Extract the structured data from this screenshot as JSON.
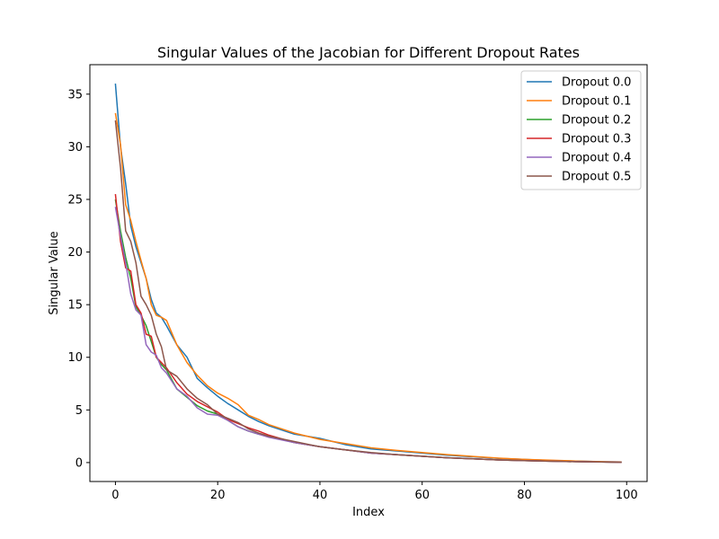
{
  "chart_data": {
    "type": "line",
    "title": "Singular Values of the Jacobian for Different Dropout Rates",
    "xlabel": "Index",
    "ylabel": "Singular Value",
    "xlim": [
      -5,
      104
    ],
    "ylim": [
      -1.8,
      37.8
    ],
    "xticks": [
      0,
      20,
      40,
      60,
      80,
      100
    ],
    "yticks": [
      0,
      5,
      10,
      15,
      20,
      25,
      30,
      35
    ],
    "grid": false,
    "legend_position": "top-right",
    "x": [
      0,
      1,
      2,
      3,
      4,
      5,
      6,
      7,
      8,
      9,
      10,
      12,
      14,
      16,
      18,
      20,
      22,
      24,
      26,
      28,
      30,
      35,
      40,
      45,
      50,
      55,
      60,
      65,
      70,
      75,
      80,
      85,
      90,
      95,
      99
    ],
    "series": [
      {
        "name": "Dropout 0.0",
        "color": "#1f77b4",
        "values": [
          36.0,
          30.0,
          26.5,
          22.5,
          20.5,
          19.0,
          17.5,
          15.5,
          14.2,
          13.8,
          13.0,
          11.2,
          10.0,
          8.0,
          7.1,
          6.3,
          5.6,
          5.0,
          4.4,
          3.9,
          3.5,
          2.7,
          2.3,
          1.7,
          1.3,
          1.1,
          0.9,
          0.7,
          0.55,
          0.4,
          0.3,
          0.2,
          0.15,
          0.08,
          0.05
        ]
      },
      {
        "name": "Dropout 0.1",
        "color": "#ff7f0e",
        "values": [
          33.2,
          30.2,
          24.5,
          23.0,
          21.0,
          19.2,
          17.5,
          15.0,
          14.0,
          13.8,
          13.5,
          11.2,
          9.5,
          8.3,
          7.3,
          6.6,
          6.1,
          5.5,
          4.5,
          4.1,
          3.6,
          2.8,
          2.2,
          1.8,
          1.4,
          1.15,
          0.95,
          0.75,
          0.58,
          0.42,
          0.3,
          0.22,
          0.15,
          0.09,
          0.05
        ]
      },
      {
        "name": "Dropout 0.2",
        "color": "#2ca02c",
        "values": [
          25.0,
          22.0,
          19.5,
          17.5,
          14.8,
          14.0,
          13.0,
          11.5,
          10.0,
          9.3,
          8.8,
          7.0,
          6.2,
          5.4,
          4.9,
          4.6,
          4.0,
          3.4,
          3.0,
          2.7,
          2.5,
          1.9,
          1.5,
          1.2,
          0.9,
          0.75,
          0.6,
          0.45,
          0.35,
          0.25,
          0.18,
          0.13,
          0.09,
          0.05,
          0.03
        ]
      },
      {
        "name": "Dropout 0.3",
        "color": "#d62728",
        "values": [
          25.5,
          21.0,
          18.5,
          18.2,
          15.0,
          14.2,
          12.2,
          12.0,
          10.0,
          9.5,
          9.0,
          7.6,
          6.5,
          5.8,
          5.3,
          4.8,
          4.1,
          3.7,
          3.3,
          3.0,
          2.6,
          1.9,
          1.5,
          1.2,
          0.9,
          0.75,
          0.6,
          0.45,
          0.35,
          0.25,
          0.18,
          0.13,
          0.09,
          0.05,
          0.03
        ]
      },
      {
        "name": "Dropout 0.4",
        "color": "#9467bd",
        "values": [
          24.3,
          21.5,
          19.0,
          16.0,
          14.5,
          14.0,
          11.2,
          10.5,
          10.2,
          9.0,
          8.5,
          7.0,
          6.3,
          5.2,
          4.6,
          4.5,
          4.0,
          3.4,
          3.0,
          2.7,
          2.4,
          1.9,
          1.5,
          1.2,
          0.9,
          0.75,
          0.6,
          0.45,
          0.35,
          0.25,
          0.18,
          0.13,
          0.09,
          0.05,
          0.03
        ]
      },
      {
        "name": "Dropout 0.5",
        "color": "#8c564b",
        "values": [
          32.5,
          28.0,
          22.0,
          21.0,
          19.0,
          15.8,
          15.0,
          14.0,
          12.2,
          11.0,
          8.8,
          8.2,
          7.0,
          6.1,
          5.5,
          4.6,
          4.2,
          3.8,
          3.2,
          2.8,
          2.5,
          2.0,
          1.5,
          1.2,
          0.95,
          0.75,
          0.6,
          0.45,
          0.35,
          0.25,
          0.18,
          0.13,
          0.09,
          0.05,
          0.03
        ]
      }
    ]
  }
}
